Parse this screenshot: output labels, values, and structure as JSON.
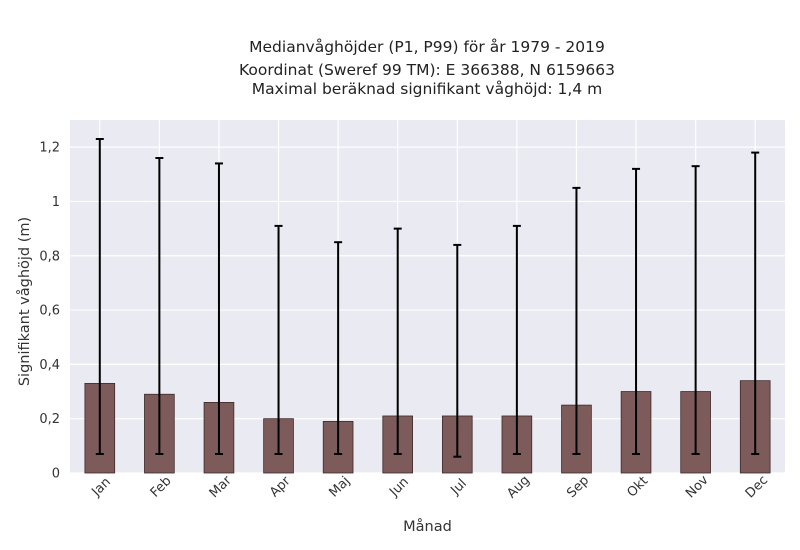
{
  "chart_data": {
    "type": "bar",
    "title_lines": [
      "Medianvåghöjder (P1, P99) för år 1979 - 2019",
      "Koordinat (Sweref 99 TM): E 366388, N 6159663",
      "Maximal beräknad signifikant våghöjd: 1,4 m"
    ],
    "xlabel": "Månad",
    "ylabel": "Signifikant våghöjd (m)",
    "categories": [
      "Jan",
      "Feb",
      "Mar",
      "Apr",
      "Maj",
      "Jun",
      "Jul",
      "Aug",
      "Sep",
      "Okt",
      "Nov",
      "Dec"
    ],
    "values": [
      0.33,
      0.29,
      0.26,
      0.2,
      0.19,
      0.21,
      0.21,
      0.21,
      0.25,
      0.3,
      0.3,
      0.34
    ],
    "error_low": [
      0.07,
      0.07,
      0.07,
      0.07,
      0.07,
      0.07,
      0.06,
      0.07,
      0.07,
      0.07,
      0.07,
      0.07
    ],
    "error_high": [
      1.23,
      1.16,
      1.14,
      0.91,
      0.85,
      0.9,
      0.84,
      0.91,
      1.05,
      1.12,
      1.13,
      1.18
    ],
    "ylim": [
      0,
      1.3
    ],
    "yticks": [
      0,
      0.2,
      0.4,
      0.6,
      0.8,
      1,
      1.2
    ],
    "ytick_labels": [
      "0",
      "0,2",
      "0,4",
      "0,6",
      "0,8",
      "1",
      "1,2"
    ],
    "grid": true,
    "colors": {
      "bar": "#7d5b5b",
      "bar_edge": "#3d2a2a",
      "errorbar": "#000000",
      "plot_bg": "#eaeaf2",
      "grid": "#ffffff"
    }
  }
}
